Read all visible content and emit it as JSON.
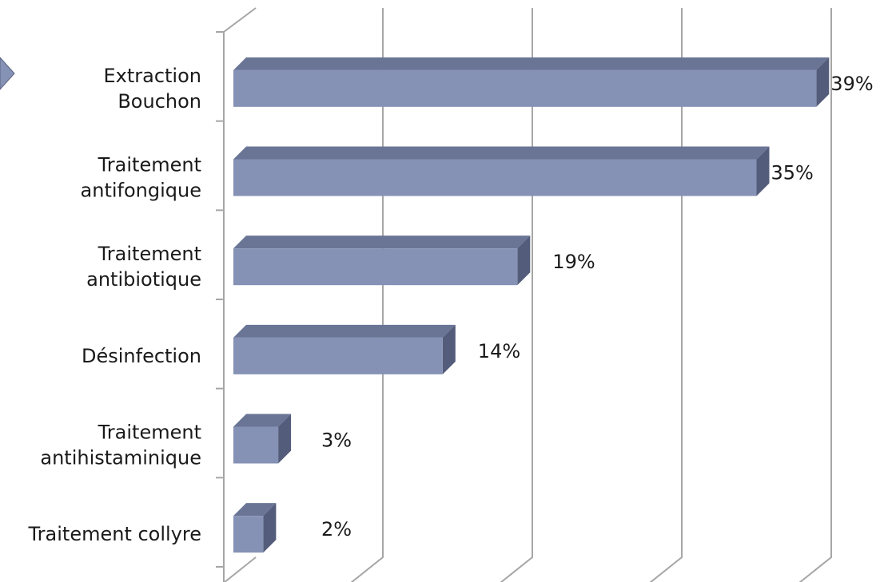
{
  "chart_data": {
    "type": "bar",
    "orientation": "horizontal",
    "style": "3d",
    "categories": [
      [
        "Extraction",
        "Bouchon"
      ],
      [
        "Traitement",
        "antifongique"
      ],
      [
        "Traitement",
        "antibiotique"
      ],
      [
        "Désinfection"
      ],
      [
        "Traitement",
        "antihistaminique"
      ],
      [
        "Traitement collyre"
      ]
    ],
    "values": [
      39,
      35,
      19,
      14,
      3,
      2
    ],
    "value_labels": [
      "39%",
      "35%",
      "19%",
      "14%",
      "3%",
      "2%"
    ],
    "xlim": [
      0,
      40
    ],
    "gridline_count": 4,
    "grid": true,
    "legend": false,
    "title": "",
    "xlabel": "",
    "ylabel": ""
  },
  "colors": {
    "bar_front": "#8591b5",
    "bar_top": "#6a7596",
    "bar_side": "#535c7a",
    "gridline": "#a6a6a6",
    "decor_arrow": "#8591b5"
  }
}
